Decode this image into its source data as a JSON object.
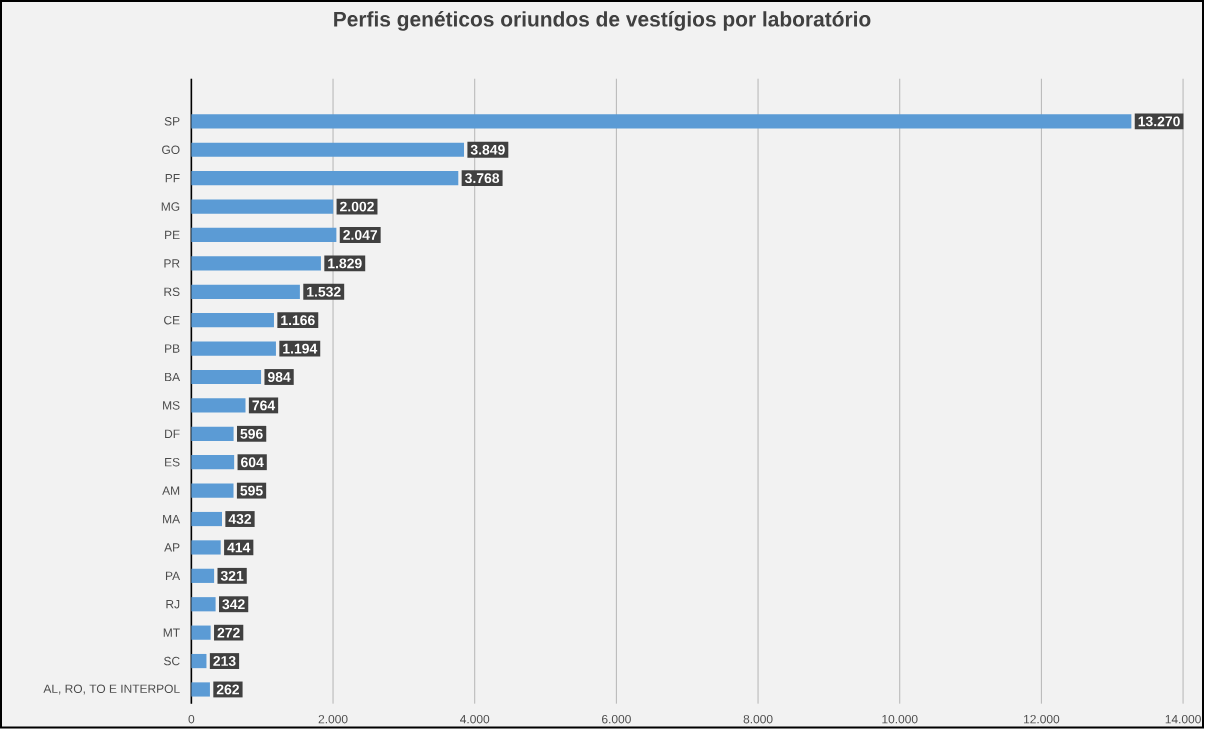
{
  "chart_data": {
    "type": "bar",
    "orientation": "horizontal",
    "title": "Perfis genéticos oriundos de vestígios por laboratório",
    "categories": [
      "SP",
      "GO",
      "PF",
      "MG",
      "PE",
      "PR",
      "RS",
      "CE",
      "PB",
      "BA",
      "MS",
      "DF",
      "ES",
      "AM",
      "MA",
      "AP",
      "PA",
      "RJ",
      "MT",
      "SC",
      "AL, RO, TO E INTERPOL"
    ],
    "values": [
      13270,
      3849,
      3768,
      2002,
      2047,
      1829,
      1532,
      1166,
      1194,
      984,
      764,
      596,
      604,
      595,
      432,
      414,
      321,
      342,
      272,
      213,
      262
    ],
    "value_labels": [
      "13.270",
      "3.849",
      "3.768",
      "2.002",
      "2.047",
      "1.829",
      "1.532",
      "1.166",
      "1.194",
      "984",
      "764",
      "596",
      "604",
      "595",
      "432",
      "414",
      "321",
      "342",
      "272",
      "213",
      "262"
    ],
    "color": "#5b9bd5",
    "xlim": [
      0,
      14000
    ],
    "xticks": [
      0,
      {
        "value": 2000,
        "label": "2.000"
      },
      {
        "value": 4000,
        "label": "4.000"
      },
      {
        "value": 6000,
        "label": "6.000"
      },
      {
        "value": 8000,
        "label": "8.000"
      },
      {
        "value": 10000,
        "label": "10.000"
      },
      {
        "value": 12000,
        "label": "12.000"
      },
      {
        "value": 14000,
        "label": "14.000"
      }
    ],
    "grid": "x"
  }
}
